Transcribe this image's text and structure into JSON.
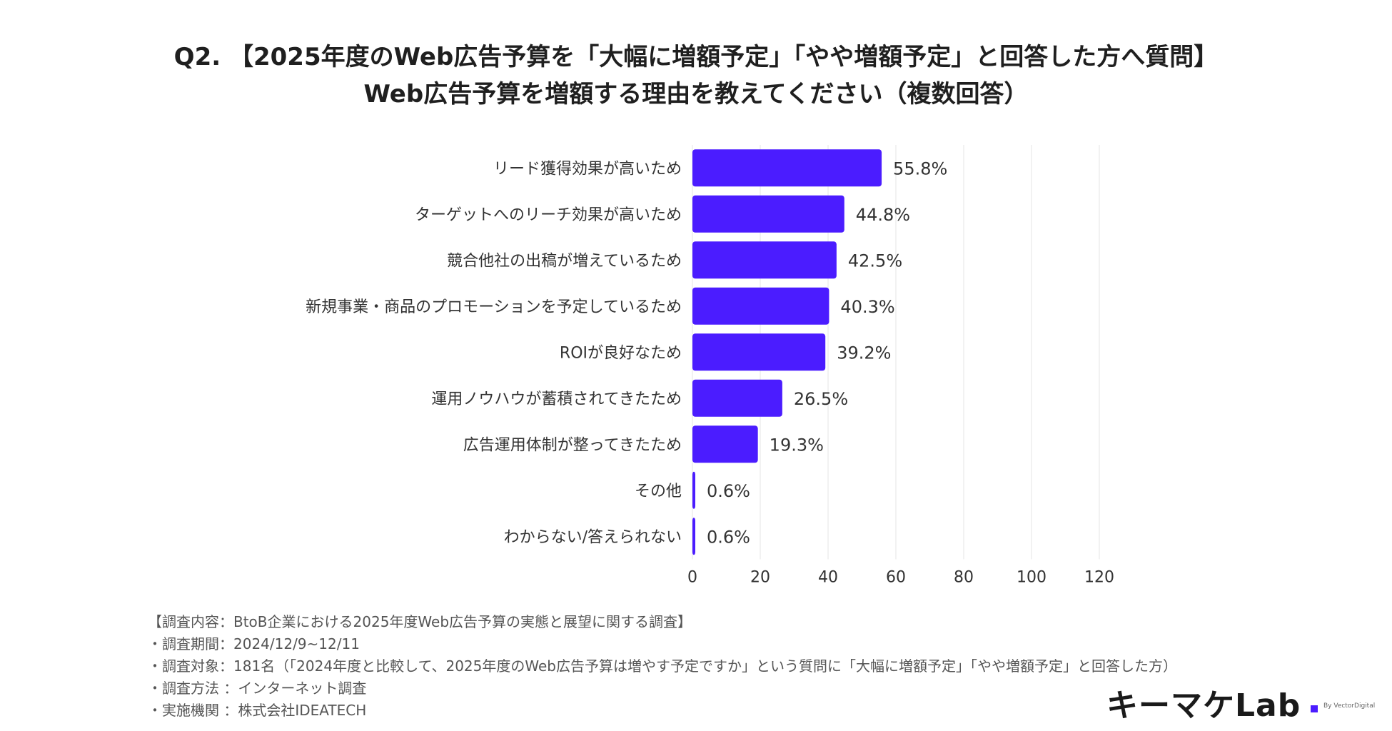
{
  "title_line1": "Q2. 【2025年度のWeb広告予算を「大幅に増額予定」「やや増額予定」と回答した方へ質問】",
  "title_line2": "Web広告予算を増額する理由を教えてください（複数回答）",
  "colors": {
    "bar": "#4b1cff",
    "grid": "#e6e6e6",
    "text": "#333333"
  },
  "chart_data": {
    "type": "bar",
    "orientation": "horizontal",
    "categories": [
      "リード獲得効果が高いため",
      "ターゲットへのリーチ効果が高いため",
      "競合他社の出稿が増えているため",
      "新規事業・商品のプロモーションを予定しているため",
      "ROIが良好なため",
      "運用ノウハウが蓄積されてきたため",
      "広告運用体制が整ってきたため",
      "その他",
      "わからない/答えられない"
    ],
    "values": [
      55.8,
      44.8,
      42.5,
      40.3,
      39.2,
      26.5,
      19.3,
      0.6,
      0.6
    ],
    "value_labels": [
      "55.8%",
      "44.8%",
      "42.5%",
      "40.3%",
      "39.2%",
      "26.5%",
      "19.3%",
      "0.6%",
      "0.6%"
    ],
    "xlim": [
      0,
      120
    ],
    "xticks": [
      0,
      20,
      40,
      60,
      80,
      100,
      120
    ],
    "grid": true
  },
  "footer": [
    "【調査内容：BtoB企業における2025年度Web広告予算の実態と展望に関する調査】",
    "・調査期間：2024/12/9~12/11",
    "・調査対象：181名（「2024年度と比較して、2025年度のWeb広告予算は増やす予定ですか」という質問に「大幅に増額予定」「やや増額予定」と回答した方）",
    "・調査方法 ：インターネット調査",
    "・実施機関 ：株式会社IDEATECH"
  ],
  "logo": {
    "text": "キーマケLab",
    "byline": "By VectorDigital"
  }
}
